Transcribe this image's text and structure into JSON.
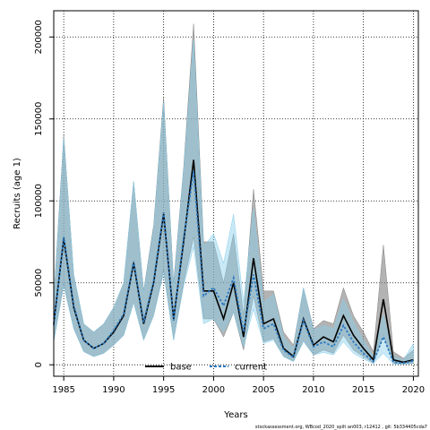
{
  "chart_data": {
    "type": "line",
    "title": "",
    "xlabel": "Years",
    "ylabel": "Recruits (age 1)",
    "xlim": [
      1984,
      2020.5
    ],
    "ylim": [
      -7000,
      216000
    ],
    "xticks": [
      1985,
      1990,
      1995,
      2000,
      2005,
      2010,
      2015,
      2020
    ],
    "yticks": [
      0,
      50000,
      100000,
      150000,
      200000
    ],
    "grid": true,
    "legend_position": "bottom-center",
    "x": [
      1984,
      1985,
      1986,
      1987,
      1988,
      1989,
      1990,
      1991,
      1992,
      1993,
      1994,
      1995,
      1996,
      1997,
      1998,
      1999,
      2000,
      2001,
      2002,
      2003,
      2004,
      2005,
      2006,
      2007,
      2008,
      2009,
      2010,
      2011,
      2012,
      2013,
      2014,
      2015,
      2016,
      2017,
      2018,
      2019,
      2020
    ],
    "series": [
      {
        "name": "base",
        "color": "#000000",
        "band_color": "#808080",
        "values": [
          25000,
          77000,
          35000,
          15000,
          10000,
          13000,
          20000,
          30000,
          62000,
          25000,
          50000,
          92000,
          28000,
          75000,
          125000,
          45000,
          45000,
          28000,
          50000,
          17000,
          65000,
          25000,
          28000,
          10000,
          5000,
          28000,
          12000,
          17000,
          14000,
          30000,
          18000,
          10000,
          3000,
          40000,
          3000,
          1500,
          3000
        ],
        "lower": [
          15000,
          50000,
          22000,
          8000,
          5000,
          7000,
          12000,
          18000,
          38000,
          15000,
          30000,
          58000,
          15000,
          50000,
          78000,
          28000,
          28000,
          17000,
          32000,
          9000,
          42000,
          14000,
          16000,
          5000,
          2000,
          15000,
          6000,
          9000,
          7000,
          18000,
          9000,
          5000,
          1000,
          18000,
          1000,
          500,
          800
        ],
        "upper": [
          40000,
          140000,
          55000,
          25000,
          20000,
          25000,
          35000,
          50000,
          112000,
          45000,
          85000,
          163000,
          50000,
          120000,
          208000,
          75000,
          75000,
          50000,
          80000,
          30000,
          107000,
          45000,
          45000,
          20000,
          12000,
          47000,
          22000,
          27000,
          25000,
          47000,
          30000,
          20000,
          8000,
          73000,
          8000,
          4000,
          9000
        ]
      },
      {
        "name": "current",
        "color": "#2a78c0",
        "band_color": "#87ceeb",
        "values": [
          24000,
          78000,
          36000,
          15000,
          10000,
          13000,
          21000,
          31000,
          63000,
          26000,
          51000,
          93000,
          27000,
          77000,
          118000,
          42000,
          47000,
          36000,
          53000,
          20000,
          55000,
          22000,
          25000,
          9000,
          4500,
          27000,
          11000,
          14000,
          11000,
          24000,
          14000,
          7000,
          2000,
          17000,
          1500,
          1000,
          2500
        ],
        "lower": [
          14000,
          48000,
          22000,
          8000,
          5000,
          7000,
          12000,
          18000,
          38000,
          15000,
          30000,
          56000,
          15000,
          48000,
          72000,
          25000,
          28000,
          20000,
          32000,
          11000,
          34000,
          13000,
          15000,
          5000,
          2000,
          14000,
          6000,
          7500,
          6000,
          14000,
          7000,
          3500,
          700,
          7000,
          500,
          300,
          900
        ],
        "upper": [
          38000,
          138000,
          55000,
          25000,
          20000,
          25000,
          35000,
          50000,
          112000,
          44000,
          83000,
          160000,
          48000,
          118000,
          198000,
          72000,
          80000,
          62000,
          92000,
          38000,
          95000,
          38000,
          43000,
          17000,
          10000,
          47000,
          21000,
          24000,
          22000,
          40000,
          26000,
          15000,
          5000,
          30000,
          5000,
          3000,
          13000
        ]
      }
    ]
  },
  "footer": {
    "text": "stockassessment.org,  WBcod_2020_spilt  an003,  r12412 ,  git: 5b334405cda7"
  }
}
